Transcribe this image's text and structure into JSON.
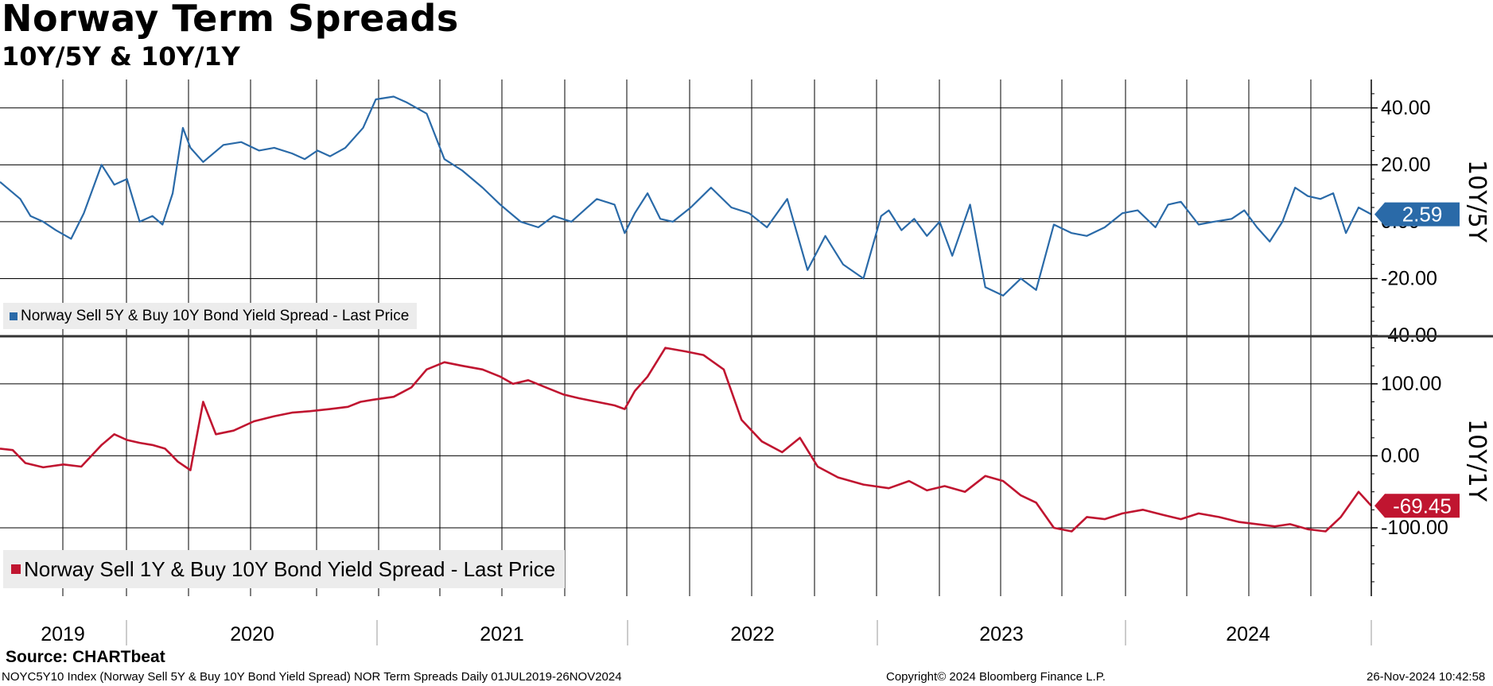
{
  "header": {
    "title": "Norway Term Spreads",
    "subtitle": "10Y/5Y & 10Y/1Y"
  },
  "footer": {
    "source": "Source: CHARTbeat",
    "index_note": "NOYC5Y10 Index (Norway Sell 5Y & Buy 10Y Bond Yield Spread) NOR Term Spreads  Daily 01JUL2019-26NOV2024",
    "copyright": "Copyright© 2024 Bloomberg Finance L.P.",
    "timestamp": "26-Nov-2024 10:42:58"
  },
  "colors": {
    "blue": "#2a6aa8",
    "red": "#c01530",
    "grid": "#000000",
    "legend_bg": "#ececec"
  },
  "chart_data": [
    {
      "type": "line",
      "name": "top-panel",
      "axis_title": "10Y/5Y",
      "legend": "Norway Sell 5Y & Buy 10Y Bond Yield Spread - Last Price",
      "last_value": 2.59,
      "last_label": "2.59",
      "ylim": [
        -40,
        50
      ],
      "yticks": [
        40,
        20,
        0,
        -20,
        -40
      ],
      "ytick_labels": [
        "40.00",
        "20.00",
        "0.00",
        "-20.00",
        "-40.00"
      ],
      "x_range": [
        2019.5,
        2024.9
      ],
      "series": {
        "x": [
          2019.5,
          2019.58,
          2019.62,
          2019.67,
          2019.72,
          2019.78,
          2019.83,
          2019.9,
          2019.95,
          2020.0,
          2020.05,
          2020.1,
          2020.14,
          2020.18,
          2020.22,
          2020.25,
          2020.3,
          2020.38,
          2020.45,
          2020.52,
          2020.58,
          2020.65,
          2020.7,
          2020.75,
          2020.8,
          2020.86,
          2020.93,
          2020.98,
          2021.05,
          2021.1,
          2021.18,
          2021.25,
          2021.32,
          2021.4,
          2021.47,
          2021.55,
          2021.62,
          2021.68,
          2021.75,
          2021.8,
          2021.85,
          2021.92,
          2021.96,
          2022.0,
          2022.05,
          2022.1,
          2022.15,
          2022.22,
          2022.3,
          2022.38,
          2022.45,
          2022.52,
          2022.6,
          2022.68,
          2022.75,
          2022.82,
          2022.9,
          2022.97,
          2023.0,
          2023.05,
          2023.1,
          2023.15,
          2023.2,
          2023.25,
          2023.32,
          2023.38,
          2023.45,
          2023.52,
          2023.58,
          2023.65,
          2023.72,
          2023.78,
          2023.85,
          2023.92,
          2023.98,
          2024.05,
          2024.1,
          2024.15,
          2024.22,
          2024.28,
          2024.35,
          2024.4,
          2024.45,
          2024.5,
          2024.55,
          2024.6,
          2024.65,
          2024.7,
          2024.75,
          2024.8,
          2024.85,
          2024.9
        ],
        "y": [
          14,
          8,
          2,
          0,
          -3,
          -6,
          3,
          20,
          13,
          15,
          0,
          2,
          -1,
          10,
          33,
          26,
          21,
          27,
          28,
          25,
          26,
          24,
          22,
          25,
          23,
          26,
          33,
          43,
          44,
          42,
          38,
          22,
          18,
          12,
          6,
          0,
          -2,
          2,
          0,
          4,
          8,
          6,
          -4,
          3,
          10,
          1,
          0,
          5,
          12,
          5,
          3,
          -2,
          8,
          -17,
          -5,
          -15,
          -20,
          2,
          4,
          -3,
          1,
          -5,
          0,
          -12,
          6,
          -23,
          -26,
          -20,
          -24,
          -1,
          -4,
          -5,
          -2,
          3,
          4,
          -2,
          6,
          7,
          -1,
          0,
          1,
          4,
          -2,
          -7,
          0,
          12,
          9,
          8,
          10,
          -4,
          5,
          2.59
        ]
      }
    },
    {
      "type": "line",
      "name": "bottom-panel",
      "axis_title": "10Y/1Y",
      "legend": "Norway Sell 1Y & Buy 10Y Bond Yield Spread - Last Price",
      "last_value": -69.45,
      "last_label": "-69.45",
      "ylim": [
        -195,
        165
      ],
      "yticks": [
        100,
        0,
        -100
      ],
      "ytick_labels": [
        "100.00",
        "0.00",
        "-100.00"
      ],
      "x_range": [
        2019.5,
        2024.9
      ],
      "series": {
        "x": [
          2019.5,
          2019.55,
          2019.6,
          2019.67,
          2019.75,
          2019.82,
          2019.9,
          2019.95,
          2020.0,
          2020.05,
          2020.1,
          2020.15,
          2020.17,
          2020.2,
          2020.25,
          2020.3,
          2020.35,
          2020.42,
          2020.5,
          2020.58,
          2020.65,
          2020.72,
          2020.8,
          2020.87,
          2020.92,
          2020.97,
          2021.05,
          2021.12,
          2021.18,
          2021.25,
          2021.32,
          2021.4,
          2021.47,
          2021.52,
          2021.58,
          2021.65,
          2021.72,
          2021.78,
          2021.85,
          2021.92,
          2021.96,
          2022.0,
          2022.05,
          2022.12,
          2022.2,
          2022.27,
          2022.35,
          2022.42,
          2022.5,
          2022.58,
          2022.65,
          2022.72,
          2022.8,
          2022.9,
          2023.0,
          2023.08,
          2023.15,
          2023.22,
          2023.3,
          2023.38,
          2023.45,
          2023.52,
          2023.58,
          2023.65,
          2023.72,
          2023.78,
          2023.85,
          2023.92,
          2024.0,
          2024.08,
          2024.15,
          2024.22,
          2024.3,
          2024.38,
          2024.45,
          2024.52,
          2024.58,
          2024.65,
          2024.72,
          2024.78,
          2024.85,
          2024.9
        ],
        "y": [
          10,
          8,
          -10,
          -16,
          -12,
          -15,
          15,
          30,
          22,
          18,
          15,
          10,
          3,
          -8,
          -20,
          75,
          30,
          35,
          48,
          55,
          60,
          62,
          65,
          68,
          75,
          78,
          82,
          95,
          120,
          130,
          125,
          120,
          110,
          100,
          105,
          95,
          85,
          80,
          75,
          70,
          65,
          90,
          110,
          150,
          145,
          140,
          120,
          50,
          20,
          5,
          25,
          -15,
          -30,
          -40,
          -45,
          -35,
          -48,
          -42,
          -50,
          -28,
          -35,
          -55,
          -65,
          -100,
          -105,
          -85,
          -88,
          -80,
          -75,
          -82,
          -88,
          -80,
          -85,
          -92,
          -95,
          -98,
          -95,
          -102,
          -105,
          -85,
          -50,
          -69.45
        ]
      }
    }
  ],
  "x_axis": {
    "year_labels": [
      "2019",
      "2020",
      "2021",
      "2022",
      "2023",
      "2024"
    ]
  }
}
